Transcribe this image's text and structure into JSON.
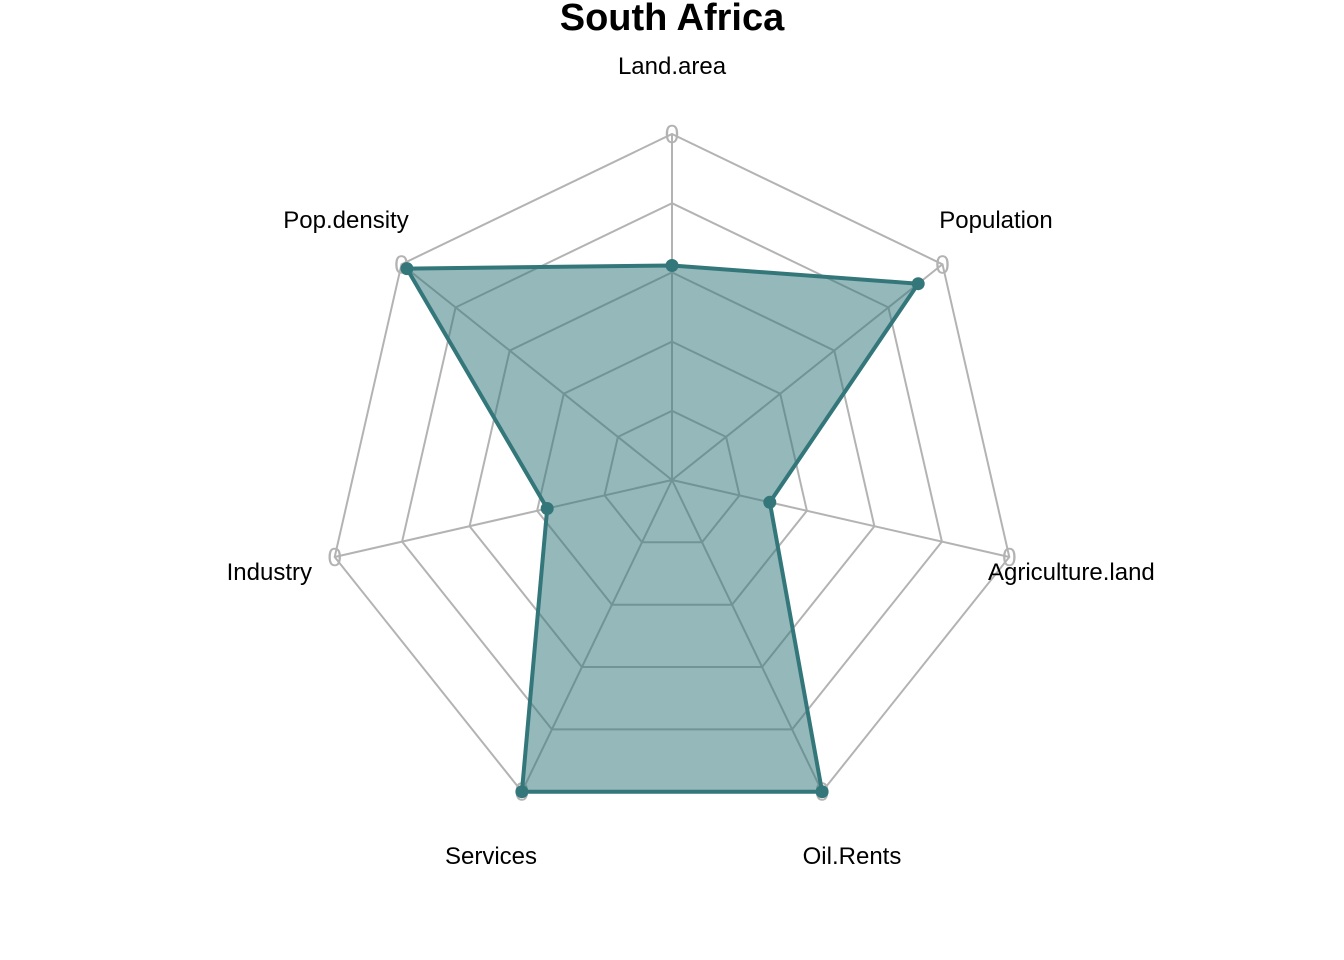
{
  "chart_data": {
    "type": "radar",
    "title": "South Africa",
    "axes": [
      "Land.area",
      "Population",
      "Agriculture.land",
      "Oil.Rents",
      "Services",
      "Industry",
      "Pop.density"
    ],
    "series": [
      {
        "values": [
          0.62,
          0.91,
          0.29,
          1.0,
          1.0,
          0.37,
          0.98
        ]
      }
    ],
    "range": [
      0,
      1
    ],
    "grid_levels": 5,
    "outer_tick_label": "0",
    "colors": {
      "line": "#33777a",
      "fill": "#33777a",
      "grid": "#b3b3b3"
    }
  }
}
